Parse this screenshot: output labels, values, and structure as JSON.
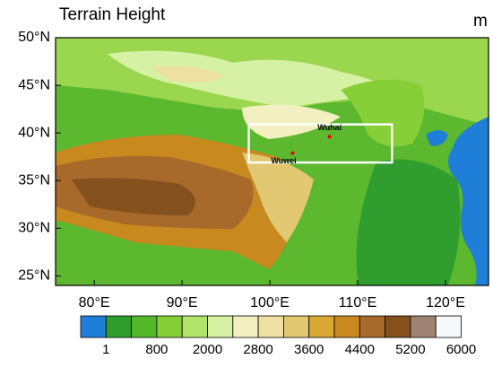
{
  "map": {
    "title": "Terrain Height",
    "unit": "m",
    "lonlim": [
      75.6,
      124.9
    ],
    "latlim": [
      24,
      50
    ],
    "lonticks": [
      {
        "value": 80,
        "label": "80°E"
      },
      {
        "value": 90,
        "label": "90°E"
      },
      {
        "value": 100,
        "label": "100°E"
      },
      {
        "value": 110,
        "label": "110°E"
      },
      {
        "value": 120,
        "label": "120°E"
      }
    ],
    "latticks": [
      {
        "value": 50,
        "label": "50°N"
      },
      {
        "value": 45,
        "label": "45°N"
      },
      {
        "value": 40,
        "label": "40°N"
      },
      {
        "value": 35,
        "label": "35°N"
      },
      {
        "value": 30,
        "label": "30°N"
      },
      {
        "value": 25,
        "label": "25°N"
      }
    ],
    "cities": [
      {
        "name": "Wuhai",
        "lon": 106.8,
        "lat": 39.6
      },
      {
        "name": "Wuwei",
        "lon": 102.6,
        "lat": 37.9
      }
    ],
    "box": {
      "lon": [
        97.6,
        113.9
      ],
      "lat": [
        36.9,
        40.9
      ]
    },
    "colorbar": {
      "colors": [
        "#1f7fd8",
        "#2f9e2f",
        "#55b82a",
        "#86cf37",
        "#b2e36a",
        "#d7f1a4",
        "#f2efc0",
        "#eee0a2",
        "#e2c872",
        "#d9a934",
        "#c8891f",
        "#a86a2a",
        "#83501e",
        "#a08272",
        "#f6f8fb"
      ],
      "labels": [
        1,
        800,
        2000,
        2800,
        3600,
        4400,
        5200,
        6000
      ]
    }
  }
}
